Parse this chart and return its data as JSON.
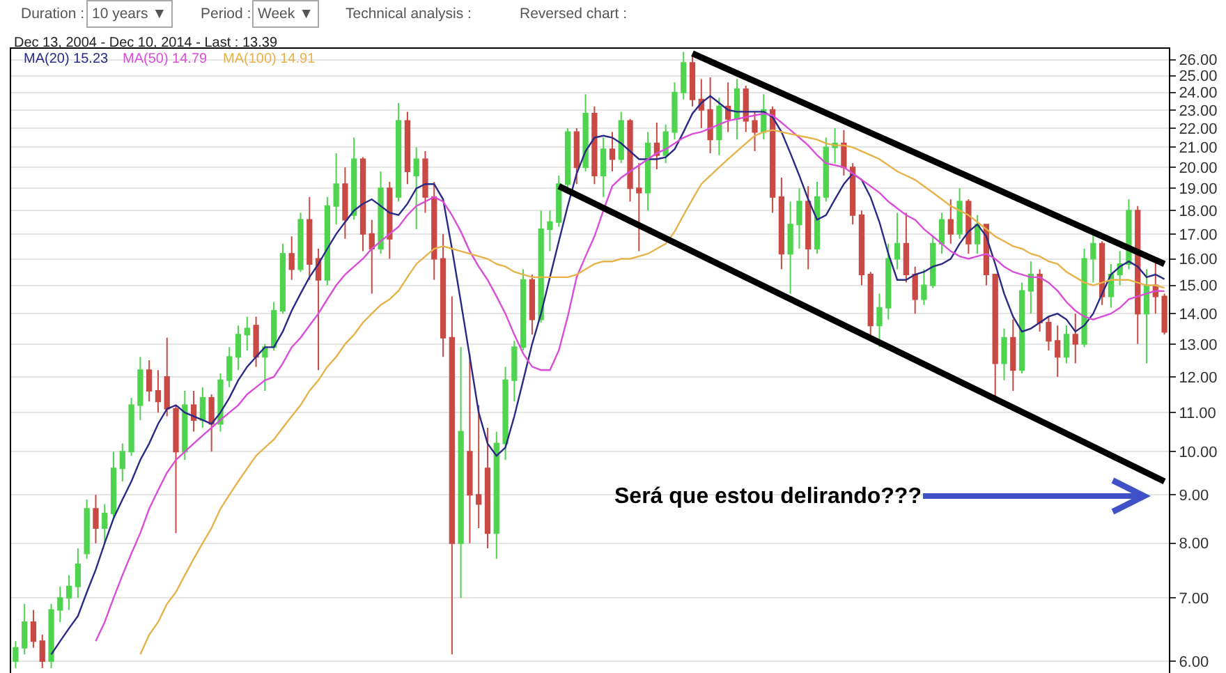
{
  "chart_data": {
    "type": "candlestick",
    "title": "Dec 13, 2004 - Dec 10, 2014 - Last : 13.39",
    "annotations": [
      "Duration :",
      "10 years ▼",
      "Period :",
      "Week ▼",
      "Technical analysis :",
      "Reversed chart :",
      "Será que estou delirando???"
    ],
    "categories": [
      null,
      null,
      null,
      null,
      null,
      null,
      null,
      null,
      null,
      null,
      null,
      null,
      null,
      null,
      null,
      null,
      null,
      null,
      null,
      null,
      null,
      null,
      null,
      null,
      null,
      null,
      null,
      null,
      null,
      null,
      null,
      null,
      null,
      null,
      null,
      null,
      null,
      null,
      null,
      null,
      null,
      null,
      null,
      null,
      null,
      null,
      null,
      null,
      null,
      null,
      null,
      null,
      null,
      null,
      null,
      null,
      null,
      null,
      null,
      null,
      null,
      null,
      null,
      null,
      null,
      null,
      null,
      null,
      null,
      null,
      null,
      null,
      null,
      null,
      null,
      null,
      null,
      null,
      null,
      null,
      null,
      null,
      null,
      null,
      null,
      null,
      null,
      null,
      null,
      null,
      null,
      null,
      null,
      null,
      null,
      null,
      null,
      null,
      null,
      null,
      null,
      null,
      null,
      null,
      null,
      null,
      null,
      null,
      null,
      null,
      null,
      null,
      null,
      null,
      null,
      null,
      null,
      null,
      null,
      null,
      null,
      null,
      null,
      null,
      null,
      null,
      null,
      null,
      null,
      null
    ],
    "ohlc": [
      [
        6.0,
        6.3,
        5.9,
        6.2
      ],
      [
        6.2,
        6.9,
        6.1,
        6.6
      ],
      [
        6.6,
        6.8,
        6.2,
        6.3
      ],
      [
        6.3,
        6.4,
        5.9,
        6.0
      ],
      [
        6.0,
        6.9,
        5.9,
        6.8
      ],
      [
        6.8,
        7.2,
        6.6,
        7.0
      ],
      [
        7.0,
        7.4,
        6.8,
        7.2
      ],
      [
        7.2,
        7.9,
        7.0,
        7.6
      ],
      [
        7.8,
        8.9,
        7.7,
        8.7
      ],
      [
        8.7,
        9.0,
        8.0,
        8.3
      ],
      [
        8.3,
        8.8,
        8.0,
        8.6
      ],
      [
        8.6,
        10.0,
        8.5,
        9.6
      ],
      [
        9.6,
        10.2,
        9.3,
        10.0
      ],
      [
        10.0,
        11.4,
        9.9,
        11.2
      ],
      [
        11.2,
        12.6,
        10.8,
        12.2
      ],
      [
        12.2,
        12.5,
        11.3,
        11.6
      ],
      [
        11.6,
        12.2,
        11.0,
        11.3
      ],
      [
        12.0,
        13.2,
        10.9,
        11.1
      ],
      [
        11.1,
        11.2,
        8.2,
        10.0
      ],
      [
        10.0,
        11.6,
        9.8,
        11.2
      ],
      [
        11.2,
        11.6,
        10.5,
        10.8
      ],
      [
        10.8,
        11.7,
        10.6,
        11.4
      ],
      [
        11.4,
        11.5,
        10.0,
        10.7
      ],
      [
        10.7,
        12.1,
        10.5,
        11.9
      ],
      [
        11.9,
        12.9,
        11.7,
        12.6
      ],
      [
        12.6,
        13.6,
        12.2,
        13.3
      ],
      [
        13.3,
        13.9,
        12.8,
        13.5
      ],
      [
        13.6,
        13.9,
        12.3,
        12.6
      ],
      [
        12.6,
        13.0,
        11.6,
        12.9
      ],
      [
        12.9,
        14.4,
        12.8,
        14.1
      ],
      [
        14.1,
        16.6,
        14.0,
        16.2
      ],
      [
        16.2,
        16.9,
        15.2,
        15.6
      ],
      [
        15.6,
        17.9,
        15.5,
        17.6
      ],
      [
        17.6,
        18.6,
        15.2,
        15.8
      ],
      [
        16.0,
        16.4,
        12.2,
        15.2
      ],
      [
        15.2,
        18.6,
        15.0,
        18.2
      ],
      [
        18.2,
        20.7,
        17.4,
        19.2
      ],
      [
        19.2,
        20.0,
        16.8,
        17.6
      ],
      [
        17.8,
        21.5,
        17.6,
        20.4
      ],
      [
        20.4,
        20.5,
        16.3,
        17.0
      ],
      [
        17.0,
        17.6,
        14.7,
        16.4
      ],
      [
        16.4,
        19.8,
        16.2,
        19.0
      ],
      [
        19.0,
        19.3,
        16.0,
        16.8
      ],
      [
        18.6,
        23.4,
        18.4,
        22.4
      ],
      [
        22.4,
        22.9,
        19.2,
        19.8
      ],
      [
        19.6,
        21.0,
        17.2,
        20.4
      ],
      [
        20.4,
        20.8,
        17.9,
        18.6
      ],
      [
        18.6,
        19.3,
        15.2,
        16.0
      ],
      [
        16.0,
        17.0,
        12.6,
        13.2
      ],
      [
        13.2,
        14.6,
        6.1,
        8.0
      ],
      [
        8.0,
        12.9,
        7.0,
        10.5
      ],
      [
        10.0,
        12.7,
        8.0,
        9.0
      ],
      [
        9.0,
        11.2,
        8.3,
        8.8
      ],
      [
        9.6,
        10.6,
        7.9,
        8.2
      ],
      [
        8.2,
        10.5,
        7.7,
        10.2
      ],
      [
        10.2,
        12.3,
        9.8,
        11.9
      ],
      [
        11.9,
        13.1,
        11.3,
        12.9
      ],
      [
        12.9,
        15.6,
        12.8,
        15.2
      ],
      [
        15.2,
        15.4,
        13.3,
        13.8
      ],
      [
        13.8,
        18.0,
        13.7,
        17.2
      ],
      [
        17.2,
        18.0,
        16.3,
        17.5
      ],
      [
        17.5,
        19.6,
        17.3,
        19.2
      ],
      [
        19.2,
        22.0,
        19.0,
        21.8
      ],
      [
        21.8,
        22.0,
        19.2,
        20.0
      ],
      [
        20.0,
        23.9,
        19.8,
        22.8
      ],
      [
        22.8,
        23.2,
        19.2,
        19.6
      ],
      [
        19.6,
        21.5,
        18.6,
        20.9
      ],
      [
        20.9,
        21.8,
        19.8,
        20.4
      ],
      [
        20.4,
        22.9,
        20.2,
        22.4
      ],
      [
        22.4,
        22.5,
        18.4,
        19.0
      ],
      [
        19.0,
        20.2,
        16.3,
        18.8
      ],
      [
        18.8,
        21.8,
        18.0,
        21.2
      ],
      [
        21.2,
        22.3,
        19.9,
        20.6
      ],
      [
        20.6,
        22.2,
        20.2,
        21.8
      ],
      [
        21.8,
        24.6,
        21.4,
        24.0
      ],
      [
        24.0,
        26.5,
        23.6,
        25.8
      ],
      [
        25.8,
        26.3,
        23.2,
        23.6
      ],
      [
        23.6,
        24.8,
        22.0,
        23.0
      ],
      [
        23.0,
        24.9,
        20.7,
        21.4
      ],
      [
        21.4,
        23.7,
        20.6,
        23.2
      ],
      [
        23.2,
        24.6,
        21.8,
        22.5
      ],
      [
        22.5,
        24.8,
        21.4,
        24.2
      ],
      [
        24.2,
        24.4,
        21.8,
        22.4
      ],
      [
        22.4,
        22.9,
        20.8,
        21.8
      ],
      [
        21.8,
        23.9,
        21.4,
        23.0
      ],
      [
        23.0,
        23.2,
        17.9,
        18.6
      ],
      [
        18.6,
        19.5,
        15.6,
        16.2
      ],
      [
        16.2,
        18.4,
        14.7,
        17.4
      ],
      [
        17.4,
        19.0,
        16.4,
        18.4
      ],
      [
        18.4,
        19.1,
        15.6,
        16.4
      ],
      [
        16.4,
        19.3,
        16.2,
        18.6
      ],
      [
        18.6,
        21.5,
        18.4,
        21.0
      ],
      [
        21.0,
        22.0,
        20.2,
        21.2
      ],
      [
        21.2,
        21.9,
        19.6,
        20.0
      ],
      [
        20.0,
        20.2,
        17.4,
        17.8
      ],
      [
        17.8,
        18.0,
        15.0,
        15.4
      ],
      [
        15.4,
        15.5,
        13.2,
        13.6
      ],
      [
        13.6,
        14.7,
        12.9,
        14.2
      ],
      [
        14.2,
        16.6,
        13.8,
        16.0
      ],
      [
        16.0,
        17.9,
        15.6,
        16.6
      ],
      [
        16.6,
        17.9,
        15.1,
        15.4
      ],
      [
        15.4,
        15.7,
        14.0,
        14.5
      ],
      [
        14.5,
        15.6,
        14.3,
        15.0
      ],
      [
        15.0,
        16.9,
        14.9,
        16.6
      ],
      [
        16.6,
        17.9,
        16.2,
        17.6
      ],
      [
        17.6,
        18.5,
        16.6,
        17.0
      ],
      [
        17.0,
        19.0,
        16.8,
        18.4
      ],
      [
        18.4,
        18.5,
        16.2,
        16.6
      ],
      [
        16.6,
        17.8,
        16.2,
        17.4
      ],
      [
        17.4,
        17.4,
        15.0,
        15.4
      ],
      [
        15.4,
        15.4,
        11.4,
        12.4
      ],
      [
        12.4,
        13.5,
        11.9,
        13.2
      ],
      [
        13.2,
        13.8,
        11.6,
        12.2
      ],
      [
        12.2,
        15.1,
        12.1,
        14.8
      ],
      [
        14.8,
        15.9,
        14.0,
        15.4
      ],
      [
        15.4,
        15.6,
        13.4,
        13.7
      ],
      [
        13.7,
        13.9,
        12.8,
        13.1
      ],
      [
        13.1,
        13.6,
        12.0,
        12.6
      ],
      [
        12.6,
        13.6,
        12.4,
        13.3
      ],
      [
        13.3,
        14.0,
        12.4,
        13.0
      ],
      [
        13.0,
        16.4,
        12.9,
        16.0
      ],
      [
        16.0,
        17.0,
        15.1,
        16.6
      ],
      [
        16.6,
        16.7,
        14.3,
        14.6
      ],
      [
        14.6,
        15.8,
        14.2,
        15.4
      ],
      [
        15.4,
        16.3,
        15.0,
        15.8
      ],
      [
        15.8,
        18.5,
        15.6,
        18.0
      ],
      [
        18.0,
        18.2,
        13.0,
        14.0
      ],
      [
        14.0,
        15.6,
        12.4,
        15.0
      ],
      [
        15.0,
        15.9,
        14.0,
        14.6
      ],
      [
        14.6,
        14.7,
        13.3,
        13.39
      ]
    ],
    "colors": [
      "#4fd44f",
      "#4fd44f",
      "#c94a44",
      "#c94a44",
      "#4fd44f",
      "#4fd44f",
      "#4fd44f",
      "#4fd44f",
      "#4fd44f",
      "#c94a44",
      "#4fd44f",
      "#4fd44f",
      "#4fd44f",
      "#4fd44f",
      "#4fd44f",
      "#c94a44",
      "#c94a44",
      "#c94a44",
      "#c94a44",
      "#4fd44f",
      "#c94a44",
      "#4fd44f",
      "#c94a44",
      "#4fd44f",
      "#4fd44f",
      "#4fd44f",
      "#4fd44f",
      "#c94a44",
      "#4fd44f",
      "#4fd44f",
      "#4fd44f",
      "#c94a44",
      "#4fd44f",
      "#c94a44",
      "#c94a44",
      "#4fd44f",
      "#4fd44f",
      "#c94a44",
      "#4fd44f",
      "#c94a44",
      "#c94a44",
      "#4fd44f",
      "#c94a44",
      "#4fd44f",
      "#c94a44",
      "#4fd44f",
      "#c94a44",
      "#c94a44",
      "#c94a44",
      "#c94a44",
      "#4fd44f",
      "#c94a44",
      "#c94a44",
      "#c94a44",
      "#4fd44f",
      "#4fd44f",
      "#4fd44f",
      "#4fd44f",
      "#c94a44",
      "#4fd44f",
      "#4fd44f",
      "#4fd44f",
      "#4fd44f",
      "#c94a44",
      "#4fd44f",
      "#c94a44",
      "#4fd44f",
      "#c94a44",
      "#4fd44f",
      "#c94a44",
      "#c94a44",
      "#4fd44f",
      "#c94a44",
      "#4fd44f",
      "#4fd44f",
      "#4fd44f",
      "#c94a44",
      "#c94a44",
      "#c94a44",
      "#4fd44f",
      "#c94a44",
      "#4fd44f",
      "#c94a44",
      "#c94a44",
      "#4fd44f",
      "#c94a44",
      "#c94a44",
      "#4fd44f",
      "#4fd44f",
      "#c94a44",
      "#4fd44f",
      "#4fd44f",
      "#4fd44f",
      "#c94a44",
      "#c94a44",
      "#c94a44",
      "#c94a44",
      "#4fd44f",
      "#4fd44f",
      "#4fd44f",
      "#c94a44",
      "#c94a44",
      "#4fd44f",
      "#4fd44f",
      "#4fd44f",
      "#c94a44",
      "#4fd44f",
      "#c94a44",
      "#4fd44f",
      "#c94a44",
      "#c94a44",
      "#4fd44f",
      "#c94a44",
      "#4fd44f",
      "#4fd44f",
      "#c94a44",
      "#c94a44",
      "#c94a44",
      "#4fd44f",
      "#c94a44",
      "#4fd44f",
      "#4fd44f",
      "#c94a44",
      "#4fd44f",
      "#4fd44f",
      "#4fd44f",
      "#c94a44",
      "#4fd44f",
      "#c94a44",
      "#c94a44"
    ],
    "series": [
      {
        "name": "MA(20) 15.23",
        "type": "line",
        "color": "#2a2a86",
        "values": [
          null,
          null,
          null,
          null,
          6.1,
          6.3,
          6.5,
          6.7,
          7.1,
          7.5,
          8.0,
          8.5,
          8.9,
          9.3,
          9.8,
          10.2,
          10.7,
          11.1,
          11.2,
          11.0,
          10.9,
          10.8,
          10.7,
          11.0,
          11.4,
          11.9,
          12.3,
          12.6,
          12.9,
          12.9,
          13.4,
          14.1,
          14.7,
          15.3,
          15.8,
          16.4,
          17.0,
          17.5,
          18.0,
          18.3,
          18.5,
          18.2,
          17.9,
          17.8,
          18.3,
          19.0,
          19.2,
          19.2,
          18.5,
          16.4,
          14.4,
          12.6,
          11.0,
          10.2,
          9.9,
          10.1,
          10.9,
          11.9,
          13.0,
          14.0,
          15.3,
          16.7,
          18.2,
          19.7,
          20.8,
          21.5,
          21.6,
          21.5,
          21.2,
          20.8,
          20.4,
          20.4,
          20.4,
          20.5,
          20.9,
          21.8,
          22.8,
          23.4,
          23.8,
          23.4,
          23.0,
          22.9,
          22.9,
          22.9,
          22.9,
          22.6,
          21.8,
          20.7,
          19.6,
          18.5,
          17.6,
          17.8,
          18.5,
          19.2,
          19.7,
          19.4,
          18.6,
          17.5,
          16.2,
          15.2,
          15.2,
          15.4,
          15.5,
          15.7,
          15.8,
          16.0,
          16.6,
          17.1,
          17.4,
          16.9,
          15.8,
          14.7,
          13.9,
          13.4,
          13.5,
          13.7,
          13.9,
          14.0,
          13.8,
          13.4,
          13.6,
          14.0,
          14.7,
          15.4,
          15.7,
          15.9,
          15.7,
          15.3,
          15.4,
          15.23
        ]
      },
      {
        "name": "MA(50) 14.79",
        "type": "line",
        "color": "#d94ed9",
        "values": [
          null,
          null,
          null,
          null,
          null,
          null,
          null,
          null,
          null,
          6.3,
          6.6,
          7.0,
          7.4,
          7.8,
          8.2,
          8.7,
          9.1,
          9.5,
          9.8,
          10.0,
          10.2,
          10.4,
          10.6,
          10.8,
          11.0,
          11.2,
          11.5,
          11.7,
          11.9,
          12.0,
          12.4,
          12.9,
          13.2,
          13.6,
          14.0,
          14.5,
          15.0,
          15.4,
          15.7,
          16.0,
          16.4,
          16.7,
          17.0,
          17.3,
          17.8,
          18.2,
          18.4,
          18.6,
          18.4,
          17.8,
          17.1,
          16.3,
          15.7,
          15.2,
          14.6,
          14.0,
          13.3,
          12.7,
          12.3,
          12.2,
          12.2,
          12.8,
          13.9,
          15.3,
          16.1,
          16.9,
          18.0,
          19.1,
          19.5,
          19.8,
          20.1,
          20.4,
          20.7,
          20.9,
          21.2,
          21.5,
          21.7,
          21.8,
          22.0,
          22.2,
          22.4,
          22.5,
          22.6,
          22.7,
          22.8,
          22.7,
          22.3,
          21.9,
          21.5,
          21.1,
          20.6,
          20.2,
          20.1,
          20.0,
          19.7,
          19.4,
          19.1,
          18.8,
          18.4,
          18.1,
          17.8,
          17.6,
          17.2,
          16.9,
          16.6,
          16.3,
          16.1,
          16.0,
          16.1,
          16.2,
          16.0,
          15.7,
          15.5,
          15.4,
          15.3,
          15.3,
          15.1,
          14.8,
          14.4,
          14.1,
          13.9,
          13.8,
          13.9,
          14.0,
          14.2,
          14.5,
          14.6,
          14.7,
          14.8,
          14.79
        ]
      },
      {
        "name": "MA(100) 14.91",
        "type": "line",
        "color": "#e6b24a",
        "values": [
          null,
          null,
          null,
          null,
          null,
          null,
          null,
          null,
          null,
          null,
          null,
          null,
          null,
          null,
          6.1,
          6.4,
          6.6,
          6.9,
          7.1,
          7.4,
          7.7,
          8.0,
          8.3,
          8.7,
          9.0,
          9.3,
          9.6,
          9.9,
          10.1,
          10.3,
          10.6,
          10.9,
          11.2,
          11.6,
          11.9,
          12.3,
          12.6,
          13.0,
          13.3,
          13.7,
          14.0,
          14.3,
          14.5,
          14.8,
          15.3,
          15.8,
          16.1,
          16.4,
          16.5,
          16.4,
          16.3,
          16.2,
          16.1,
          16.0,
          15.8,
          15.7,
          15.5,
          15.4,
          15.3,
          15.3,
          15.3,
          15.3,
          15.3,
          15.4,
          15.6,
          15.8,
          15.9,
          15.9,
          16.0,
          16.0,
          16.1,
          16.2,
          16.4,
          16.6,
          17.1,
          17.8,
          18.5,
          19.2,
          19.6,
          20.0,
          20.4,
          20.8,
          21.2,
          21.6,
          21.8,
          21.9,
          21.8,
          21.7,
          21.6,
          21.5,
          21.4,
          21.2,
          21.1,
          21.1,
          21.0,
          20.8,
          20.6,
          20.4,
          20.1,
          19.8,
          19.6,
          19.4,
          19.1,
          18.8,
          18.5,
          18.2,
          18.0,
          17.8,
          17.5,
          17.2,
          16.9,
          16.7,
          16.5,
          16.4,
          16.2,
          16.1,
          15.9,
          15.8,
          15.5,
          15.3,
          15.1,
          15.0,
          15.1,
          15.2,
          15.2,
          15.2,
          15.1,
          15.0,
          15.0,
          14.91
        ]
      },
      {
        "type": "line",
        "color": "#000000",
        "values": [
          null,
          null,
          null,
          null,
          null,
          null,
          null,
          null,
          null,
          null,
          null,
          null,
          null,
          null,
          null,
          null,
          null,
          null,
          null,
          null,
          null,
          null,
          null,
          null,
          null,
          null,
          null,
          null,
          null,
          null,
          null,
          null,
          null,
          null,
          null,
          null,
          null,
          null,
          null,
          null,
          null,
          null,
          null,
          null,
          null,
          null,
          null,
          null,
          null,
          null,
          null,
          null,
          null,
          null,
          null,
          null,
          null,
          null,
          null,
          null,
          null,
          null,
          null,
          null,
          null,
          null,
          null,
          null,
          null,
          null,
          null,
          null,
          null,
          null,
          null,
          null,
          26.4,
          null,
          null,
          null,
          null,
          null,
          null,
          null,
          null,
          null,
          null,
          null,
          null,
          null,
          null,
          null,
          null,
          null,
          null,
          null,
          null,
          null,
          null,
          null,
          null,
          null,
          null,
          null,
          null,
          null,
          null,
          null,
          null,
          null,
          null,
          null,
          null,
          null,
          null,
          null,
          null,
          null,
          null,
          null,
          null,
          null,
          null,
          null,
          null,
          null,
          null,
          null,
          null,
          15.8
        ]
      },
      {
        "type": "line",
        "color": "#000000",
        "values": [
          null,
          null,
          null,
          null,
          null,
          null,
          null,
          null,
          null,
          null,
          null,
          null,
          null,
          null,
          null,
          null,
          null,
          null,
          null,
          null,
          null,
          null,
          null,
          null,
          null,
          null,
          null,
          null,
          null,
          null,
          null,
          null,
          null,
          null,
          null,
          null,
          null,
          null,
          null,
          null,
          null,
          null,
          null,
          null,
          null,
          null,
          null,
          null,
          null,
          null,
          null,
          null,
          null,
          null,
          null,
          null,
          null,
          null,
          null,
          null,
          null,
          19.1,
          null,
          null,
          null,
          null,
          null,
          null,
          null,
          null,
          null,
          null,
          null,
          null,
          null,
          null,
          null,
          null,
          null,
          null,
          null,
          null,
          null,
          null,
          null,
          null,
          null,
          null,
          null,
          null,
          null,
          null,
          null,
          null,
          null,
          null,
          null,
          null,
          null,
          null,
          null,
          null,
          null,
          null,
          null,
          null,
          null,
          null,
          null,
          null,
          null,
          null,
          null,
          null,
          null,
          null,
          null,
          null,
          null,
          null,
          null,
          null,
          null,
          null,
          null,
          null,
          null,
          null,
          null,
          9.3
        ]
      }
    ],
    "ylim": [
      5.83,
      26.7
    ],
    "yticks": [
      {
        "value": 6,
        "label": "6.00"
      },
      {
        "value": 7,
        "label": "7.00"
      },
      {
        "value": 8,
        "label": "8.00"
      },
      {
        "value": 9,
        "label": "9.00"
      },
      {
        "value": 10,
        "label": "10.00"
      },
      {
        "value": 11,
        "label": "11.00"
      },
      {
        "value": 12,
        "label": "12.00"
      },
      {
        "value": 13,
        "label": "13.00"
      },
      {
        "value": 14,
        "label": "14.00"
      },
      {
        "value": 15,
        "label": "15.00"
      },
      {
        "value": 16,
        "label": "16.00"
      },
      {
        "value": 17,
        "label": "17.00"
      },
      {
        "value": 18,
        "label": "18.00"
      },
      {
        "value": 19,
        "label": "19.00"
      },
      {
        "value": 20,
        "label": "20.00"
      },
      {
        "value": 21,
        "label": "21.00"
      },
      {
        "value": 22,
        "label": "22.00"
      },
      {
        "value": 23,
        "label": "23.00"
      },
      {
        "value": 24,
        "label": "24.00"
      },
      {
        "value": 25,
        "label": "25.00"
      },
      {
        "value": 26,
        "label": "26.00"
      }
    ],
    "log": "y",
    "grid": "y",
    "tick_labels": "y"
  }
}
